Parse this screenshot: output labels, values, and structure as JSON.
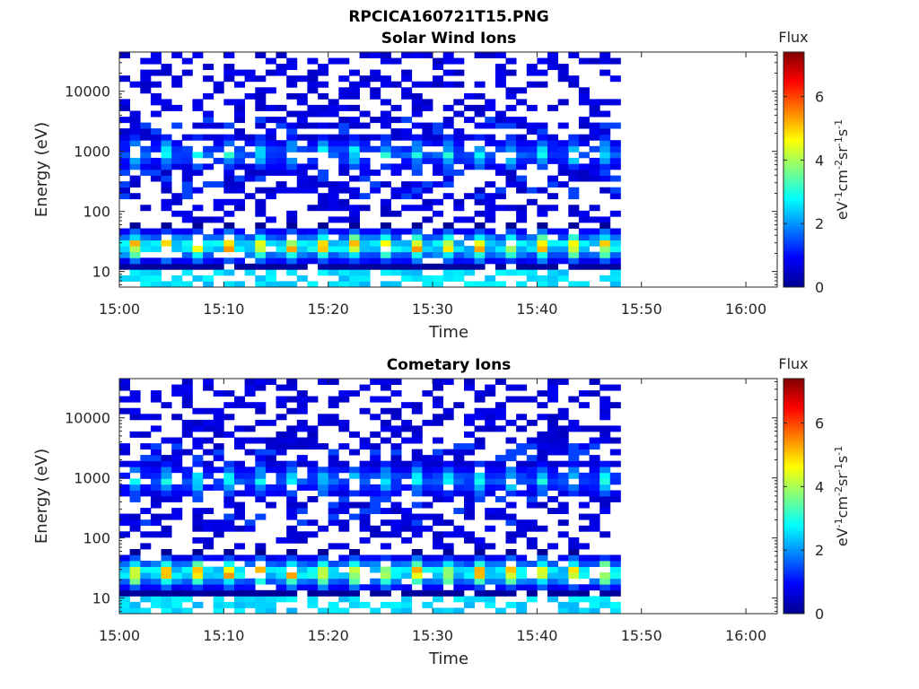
{
  "figure_title": "RPCICA160721T15.PNG",
  "colors": {
    "background": "#ffffff",
    "axis": "#262626",
    "colormap": [
      "#00008f",
      "#0000ff",
      "#0080ff",
      "#00ffff",
      "#80ff80",
      "#ffff00",
      "#ff8000",
      "#ff0000",
      "#800000"
    ]
  },
  "chart_data": [
    {
      "type": "heatmap",
      "title": "Solar Wind Ions",
      "xlabel": "Time",
      "ylabel": "Energy (eV)",
      "y_scale": "log",
      "ylim": [
        5.5,
        45000
      ],
      "x_ticks": [
        "15:00",
        "15:10",
        "15:20",
        "15:30",
        "15:40",
        "15:50",
        "16:00"
      ],
      "xlim": [
        "15:00",
        "16:03"
      ],
      "y_ticks": [
        10,
        100,
        1000,
        10000
      ],
      "y_tick_labels": [
        "10",
        "100",
        "1000",
        "10000"
      ],
      "data_end_time": "15:48",
      "colorbar": {
        "title": "Flux",
        "label": "eV-1 cm-2 sr-1 s-1",
        "range": [
          0,
          7.4
        ],
        "ticks": [
          0,
          2,
          4,
          6
        ],
        "tick_labels": [
          "0",
          "2",
          "4",
          "6"
        ]
      },
      "approximate_levels": {
        "low_band_energy_ev": [
          20,
          35
        ],
        "low_band_peak_flux": 6.2,
        "mid_band_energy_ev": [
          700,
          1200
        ],
        "mid_band_peak_flux": 3.3,
        "high_energy_background_flux": 0.7
      }
    },
    {
      "type": "heatmap",
      "title": "Cometary Ions",
      "xlabel": "Time",
      "ylabel": "Energy (eV)",
      "y_scale": "log",
      "ylim": [
        5.5,
        45000
      ],
      "x_ticks": [
        "15:00",
        "15:10",
        "15:20",
        "15:30",
        "15:40",
        "15:50",
        "16:00"
      ],
      "xlim": [
        "15:00",
        "16:03"
      ],
      "y_ticks": [
        10,
        100,
        1000,
        10000
      ],
      "y_tick_labels": [
        "10",
        "100",
        "1000",
        "10000"
      ],
      "data_end_time": "15:48",
      "colorbar": {
        "title": "Flux",
        "label": "eV-1 cm-2 sr-1 s-1",
        "range": [
          0,
          7.4
        ],
        "ticks": [
          0,
          2,
          4,
          6
        ],
        "tick_labels": [
          "0",
          "2",
          "4",
          "6"
        ]
      },
      "approximate_levels": {
        "low_band_energy_ev": [
          20,
          35
        ],
        "low_band_peak_flux": 6.2,
        "mid_band_energy_ev": [
          700,
          1200
        ],
        "mid_band_peak_flux": 3.3,
        "high_energy_background_flux": 0.7
      }
    }
  ]
}
